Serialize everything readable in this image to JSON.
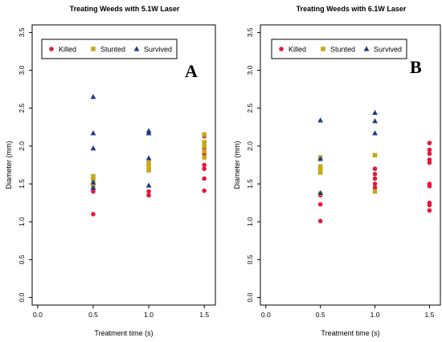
{
  "colors": {
    "killed": "#e8173a",
    "stunted": "#c6a81a",
    "survived": "#1f3a8c",
    "axis": "#000000",
    "background": "#ffffff"
  },
  "chart_data": [
    {
      "type": "scatter",
      "title": "Treating Weeds with 5.1W Laser",
      "panel_label": "A",
      "xlabel": "Treatment time (s)",
      "ylabel": "Diameter (mm)",
      "xlim": [
        -0.05,
        1.6
      ],
      "ylim": [
        -0.1,
        3.6
      ],
      "xticks": [
        "0.0",
        "0.5",
        "1.0",
        "1.5"
      ],
      "yticks": [
        "0.0",
        "0.5",
        "1.0",
        "1.5",
        "2.0",
        "2.5",
        "3.0",
        "3.5"
      ],
      "grid": false,
      "legend_position": "top-left",
      "series": [
        {
          "name": "Killed",
          "marker": "circle",
          "colorKey": "killed",
          "points": [
            [
              0.5,
              1.1
            ],
            [
              0.5,
              1.4
            ],
            [
              0.5,
              1.43
            ],
            [
              1.0,
              1.35
            ],
            [
              1.0,
              1.4
            ],
            [
              1.5,
              1.41
            ],
            [
              1.5,
              1.57
            ],
            [
              1.5,
              1.7
            ],
            [
              1.5,
              1.75
            ],
            [
              1.5,
              1.9
            ],
            [
              1.5,
              1.95
            ],
            [
              1.5,
              2.0
            ],
            [
              1.5,
              2.13
            ]
          ]
        },
        {
          "name": "Stunted",
          "marker": "square",
          "colorKey": "stunted",
          "points": [
            [
              0.5,
              1.6
            ],
            [
              0.5,
              1.55
            ],
            [
              0.5,
              1.48
            ],
            [
              1.0,
              1.68
            ],
            [
              1.0,
              1.73
            ],
            [
              1.0,
              1.78
            ],
            [
              1.5,
              1.85
            ],
            [
              1.5,
              1.93
            ],
            [
              1.5,
              2.0
            ],
            [
              1.5,
              2.05
            ],
            [
              1.5,
              2.15
            ]
          ]
        },
        {
          "name": "Survived",
          "marker": "triangle",
          "colorKey": "survived",
          "points": [
            [
              0.5,
              2.65
            ],
            [
              0.5,
              2.17
            ],
            [
              0.5,
              1.97
            ],
            [
              0.5,
              1.52
            ],
            [
              0.5,
              1.45
            ],
            [
              1.0,
              2.2
            ],
            [
              1.0,
              2.17
            ],
            [
              1.0,
              1.84
            ],
            [
              1.0,
              1.48
            ]
          ]
        }
      ]
    },
    {
      "type": "scatter",
      "title": "Treating Weeds with 6.1W Laser",
      "panel_label": "B",
      "xlabel": "Treatment time (s)",
      "ylabel": "Diameter (mm)",
      "xlim": [
        -0.05,
        1.6
      ],
      "ylim": [
        -0.1,
        3.6
      ],
      "xticks": [
        "0.0",
        "0.5",
        "1.0",
        "1.5"
      ],
      "yticks": [
        "0.0",
        "0.5",
        "1.0",
        "1.5",
        "2.0",
        "2.5",
        "3.0",
        "3.5"
      ],
      "grid": false,
      "legend_position": "top-left",
      "series": [
        {
          "name": "Killed",
          "marker": "circle",
          "colorKey": "killed",
          "points": [
            [
              0.5,
              1.01
            ],
            [
              0.5,
              1.23
            ],
            [
              0.5,
              1.35
            ],
            [
              1.0,
              1.45
            ],
            [
              1.0,
              1.5
            ],
            [
              1.0,
              1.57
            ],
            [
              1.0,
              1.63
            ],
            [
              1.0,
              1.7
            ],
            [
              1.5,
              1.15
            ],
            [
              1.5,
              1.22
            ],
            [
              1.5,
              1.25
            ],
            [
              1.5,
              1.47
            ],
            [
              1.5,
              1.5
            ],
            [
              1.5,
              1.78
            ],
            [
              1.5,
              1.82
            ],
            [
              1.5,
              1.9
            ],
            [
              1.5,
              1.95
            ],
            [
              1.5,
              2.04
            ]
          ]
        },
        {
          "name": "Stunted",
          "marker": "square",
          "colorKey": "stunted",
          "points": [
            [
              0.5,
              1.85
            ],
            [
              0.5,
              1.73
            ],
            [
              0.5,
              1.68
            ],
            [
              0.5,
              1.65
            ],
            [
              0.5,
              1.37
            ],
            [
              1.0,
              1.88
            ],
            [
              1.0,
              1.4
            ]
          ]
        },
        {
          "name": "Survived",
          "marker": "triangle",
          "colorKey": "survived",
          "points": [
            [
              0.5,
              2.34
            ],
            [
              0.5,
              1.83
            ],
            [
              0.5,
              1.38
            ],
            [
              1.0,
              2.44
            ],
            [
              1.0,
              2.33
            ],
            [
              1.0,
              2.17
            ]
          ]
        }
      ]
    }
  ]
}
